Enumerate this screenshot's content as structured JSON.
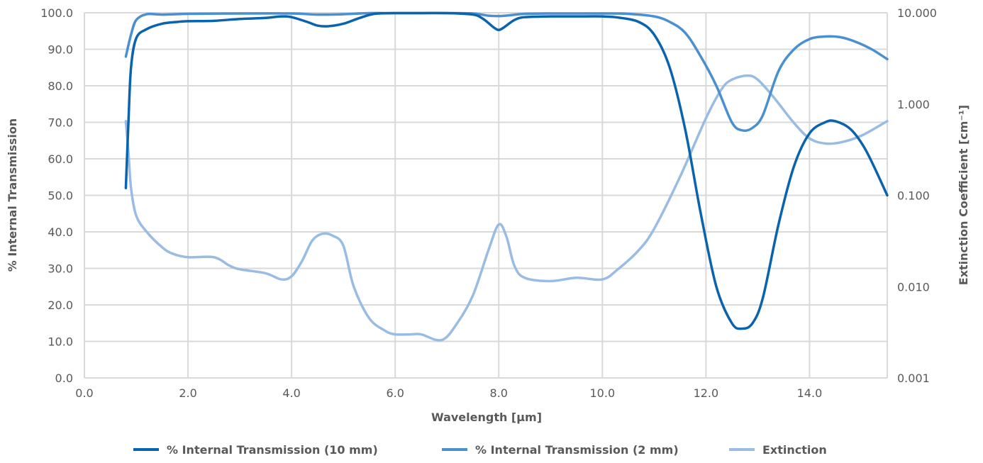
{
  "chart_data": {
    "type": "line",
    "title": "",
    "xlabel": "Wavelength [µm]",
    "ylabel": "% Internal Transmission",
    "y2label": "Extinction Coefficient [cm⁻¹]",
    "xlim": [
      0,
      15.5
    ],
    "ylim": [
      0,
      100
    ],
    "y2lim": [
      0.001,
      10
    ],
    "y2scale": "log",
    "grid": true,
    "legend_position": "bottom",
    "x_ticks": [
      0,
      2,
      4,
      6,
      8,
      10,
      12,
      14
    ],
    "x_tick_labels": [
      "0.0",
      "2.0",
      "4.0",
      "6.0",
      "8.0",
      "10.0",
      "12.0",
      "14.0"
    ],
    "y_ticks": [
      0,
      10,
      20,
      30,
      40,
      50,
      60,
      70,
      80,
      90,
      100
    ],
    "y_tick_labels": [
      "0.0",
      "10.0",
      "20.0",
      "30.0",
      "40.0",
      "50.0",
      "60.0",
      "70.0",
      "80.0",
      "90.0",
      "100.0"
    ],
    "y2_ticks": [
      0.001,
      0.01,
      0.1,
      1,
      10
    ],
    "y2_tick_labels": [
      "0.001",
      "0.010",
      "0.100",
      "1.000",
      "10.000"
    ],
    "series": [
      {
        "name": "% Internal Transmission (10 mm)",
        "axis": "left",
        "color": "#0a63ad",
        "x": [
          0.8,
          0.85,
          0.9,
          1.0,
          1.2,
          1.5,
          1.8,
          2.0,
          2.5,
          3.0,
          3.5,
          3.8,
          4.0,
          4.3,
          4.5,
          4.7,
          5.0,
          5.3,
          5.6,
          6.0,
          6.5,
          7.0,
          7.5,
          7.7,
          7.9,
          8.0,
          8.1,
          8.3,
          8.5,
          9.0,
          9.5,
          10.0,
          10.3,
          10.7,
          11.0,
          11.3,
          11.6,
          11.9,
          12.2,
          12.5,
          12.7,
          12.9,
          13.1,
          13.4,
          13.7,
          14.0,
          14.3,
          14.5,
          14.8,
          15.1,
          15.5
        ],
        "y": [
          52,
          70,
          85,
          93,
          95.5,
          97,
          97.5,
          97.7,
          97.8,
          98.3,
          98.6,
          99,
          98.8,
          97.5,
          96.5,
          96.3,
          97,
          98.5,
          99.7,
          99.9,
          99.9,
          99.9,
          99.5,
          98.3,
          96,
          95.3,
          96,
          98,
          98.8,
          99,
          99,
          99,
          98.7,
          97.5,
          94,
          85,
          68,
          45,
          25,
          15,
          13.5,
          15,
          22,
          42,
          58,
          67,
          70,
          70.3,
          68,
          62,
          50
        ]
      },
      {
        "name": "% Internal Transmission (2 mm)",
        "axis": "left",
        "color": "#4a8fd0",
        "x": [
          0.8,
          0.9,
          1.0,
          1.2,
          1.5,
          2.0,
          3.0,
          4.0,
          4.5,
          5.0,
          5.5,
          6.0,
          7.0,
          7.5,
          7.8,
          8.0,
          8.2,
          8.5,
          9.0,
          10.0,
          10.5,
          11.0,
          11.3,
          11.6,
          11.9,
          12.2,
          12.5,
          12.7,
          12.9,
          13.1,
          13.4,
          13.7,
          14.0,
          14.3,
          14.6,
          14.9,
          15.2,
          15.5
        ],
        "y": [
          88,
          94,
          98,
          99.6,
          99.5,
          99.7,
          99.8,
          99.8,
          99.5,
          99.6,
          99.9,
          99.9,
          99.9,
          99.8,
          99.2,
          99.1,
          99.3,
          99.7,
          99.8,
          99.8,
          99.7,
          99,
          97.5,
          94.5,
          88,
          80,
          70,
          67.8,
          68.5,
          72,
          84,
          90,
          92.8,
          93.5,
          93.3,
          92,
          90,
          87.3
        ]
      },
      {
        "name": "Extinction",
        "axis": "right",
        "color": "#98bce4",
        "x": [
          0.8,
          0.85,
          0.9,
          1.0,
          1.2,
          1.5,
          1.7,
          2.0,
          2.5,
          2.8,
          3.0,
          3.5,
          3.8,
          4.0,
          4.2,
          4.4,
          4.6,
          4.8,
          5.0,
          5.2,
          5.5,
          5.8,
          6.0,
          6.3,
          6.5,
          6.9,
          7.2,
          7.5,
          7.8,
          8.0,
          8.15,
          8.3,
          8.5,
          9.0,
          9.5,
          10.0,
          10.3,
          10.7,
          11.0,
          11.5,
          12.0,
          12.3,
          12.5,
          12.8,
          13.0,
          13.3,
          13.7,
          14.0,
          14.3,
          14.6,
          15.0,
          15.5
        ],
        "y": [
          0.65,
          0.3,
          0.12,
          0.06,
          0.04,
          0.027,
          0.023,
          0.021,
          0.021,
          0.017,
          0.0155,
          0.014,
          0.012,
          0.013,
          0.019,
          0.032,
          0.038,
          0.036,
          0.028,
          0.01,
          0.0045,
          0.0033,
          0.003,
          0.003,
          0.003,
          0.0026,
          0.004,
          0.008,
          0.025,
          0.048,
          0.035,
          0.017,
          0.0125,
          0.0115,
          0.0125,
          0.012,
          0.0155,
          0.025,
          0.043,
          0.16,
          0.7,
          1.45,
          1.85,
          2.05,
          1.85,
          1.2,
          0.62,
          0.42,
          0.37,
          0.38,
          0.45,
          0.65
        ]
      }
    ]
  }
}
